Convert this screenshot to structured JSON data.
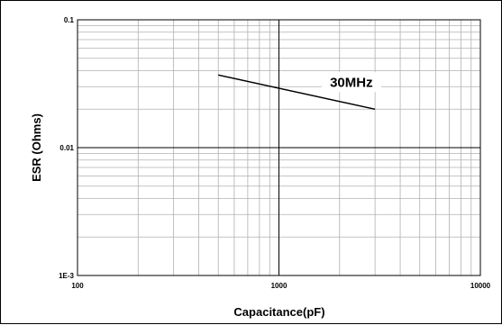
{
  "chart_data": {
    "type": "line",
    "xlabel": "Capacitance(pF)",
    "ylabel": "ESR (Ohms)",
    "x_scale": "log",
    "y_scale": "log",
    "xlim": [
      100,
      10000
    ],
    "ylim": [
      0.001,
      0.1
    ],
    "x_ticks": [
      {
        "value": 100,
        "label": "100"
      },
      {
        "value": 1000,
        "label": "1000"
      },
      {
        "value": 10000,
        "label": "10000"
      }
    ],
    "y_ticks": [
      {
        "value": 0.1,
        "label": "0.1"
      },
      {
        "value": 0.01,
        "label": "0.01"
      },
      {
        "value": 0.001,
        "label": "1E-3"
      }
    ],
    "grid": true,
    "series": [
      {
        "x": [
          500,
          3000
        ],
        "y": [
          0.037,
          0.02
        ],
        "color": "#000000"
      }
    ],
    "annotations": [
      {
        "text": "30MHz",
        "x": 1500,
        "y": 0.03
      }
    ]
  }
}
